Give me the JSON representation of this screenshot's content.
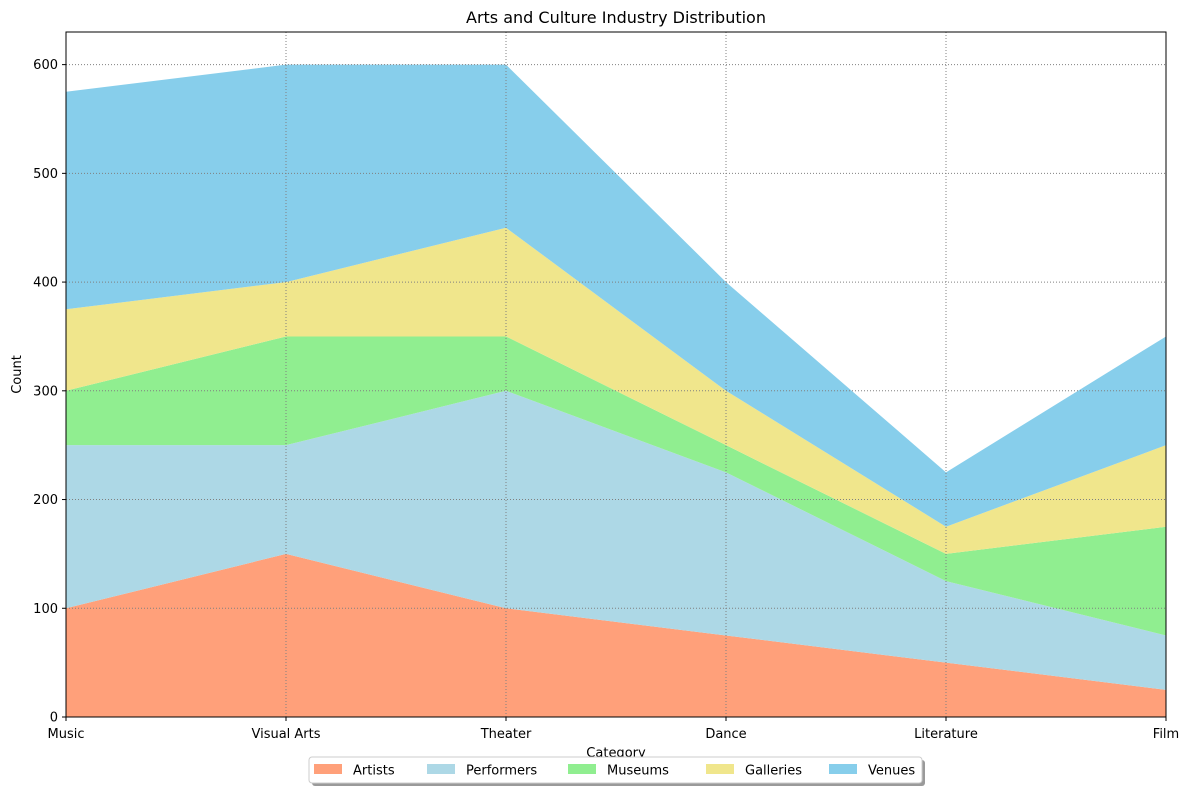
{
  "chart_data": {
    "type": "area",
    "stacked": true,
    "title": "Arts and Culture Industry Distribution",
    "xlabel": "Category",
    "ylabel": "Count",
    "categories": [
      "Music",
      "Visual Arts",
      "Theater",
      "Dance",
      "Literature",
      "Film"
    ],
    "ylim": [
      0,
      630
    ],
    "yticks": [
      0,
      100,
      200,
      300,
      400,
      500,
      600
    ],
    "grid": true,
    "legend_position": "bottom-center",
    "series": [
      {
        "name": "Artists",
        "color": "#FFA07A",
        "values": [
          100,
          150,
          100,
          75,
          50,
          25
        ]
      },
      {
        "name": "Performers",
        "color": "#ADD8E6",
        "values": [
          150,
          100,
          200,
          150,
          75,
          50
        ]
      },
      {
        "name": "Museums",
        "color": "#90EE90",
        "values": [
          50,
          100,
          50,
          25,
          25,
          100
        ]
      },
      {
        "name": "Galleries",
        "color": "#F0E68C",
        "values": [
          75,
          50,
          100,
          50,
          25,
          75
        ]
      },
      {
        "name": "Venues",
        "color": "#87CEEB",
        "values": [
          200,
          200,
          150,
          100,
          50,
          100
        ]
      }
    ]
  }
}
